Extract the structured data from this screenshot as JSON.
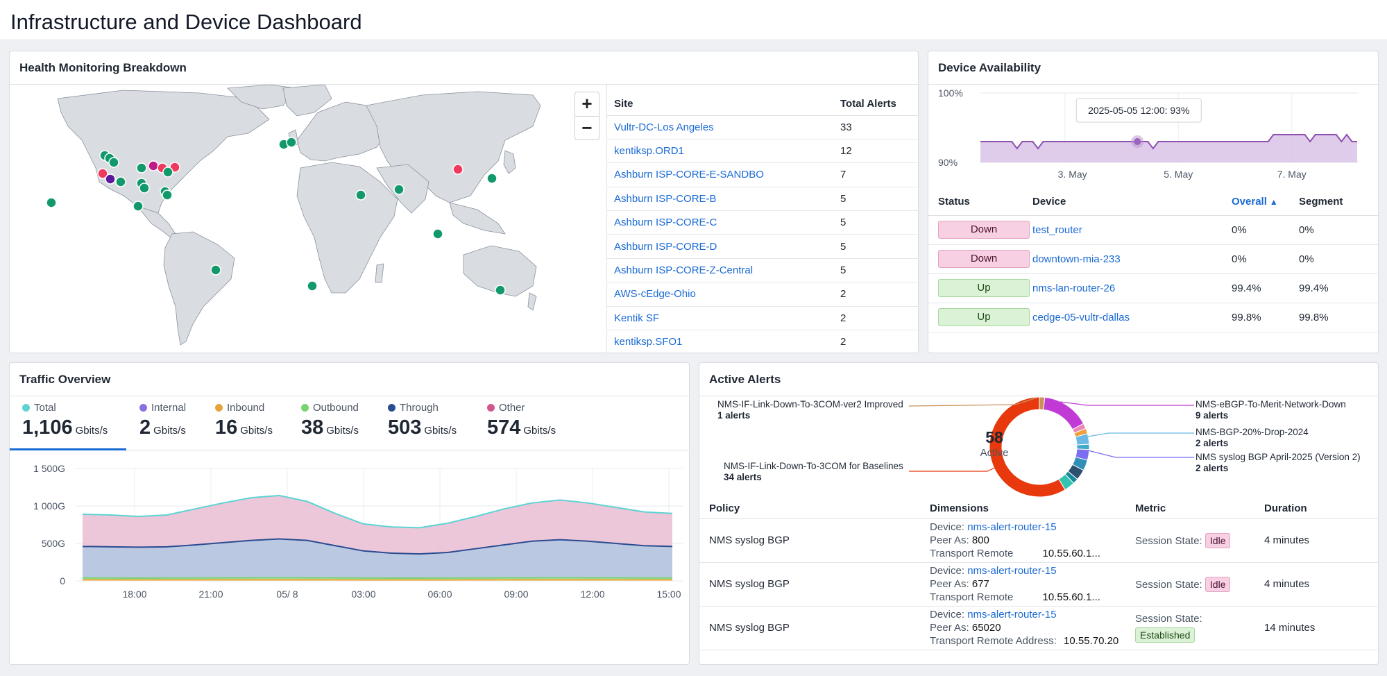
{
  "page": {
    "title": "Infrastructure and Device Dashboard"
  },
  "colors": {
    "accent": "#1a6ad4",
    "up_site": "#12996b",
    "alert_site": "#ef3a5d",
    "warn_site": "#c21a8b",
    "critical_site": "#5b1a9e"
  },
  "health": {
    "title": "Health Monitoring Breakdown",
    "zoom_in": "+",
    "zoom_out": "−",
    "table_headers": {
      "site": "Site",
      "alerts": "Total Alerts"
    },
    "rows": [
      {
        "site": "Vultr-DC-Los Angeles",
        "alerts": "33"
      },
      {
        "site": "kentiksp.ORD1",
        "alerts": "12"
      },
      {
        "site": "Ashburn ISP-CORE-E-SANDBO",
        "alerts": "7"
      },
      {
        "site": "Ashburn ISP-CORE-B",
        "alerts": "5"
      },
      {
        "site": "Ashburn ISP-CORE-C",
        "alerts": "5"
      },
      {
        "site": "Ashburn ISP-CORE-D",
        "alerts": "5"
      },
      {
        "site": "Ashburn ISP-CORE-Z-Central",
        "alerts": "5"
      },
      {
        "site": "AWS-cEdge-Ohio",
        "alerts": "2"
      },
      {
        "site": "Kentik SF",
        "alerts": "2"
      },
      {
        "site": "kentiksp.SFO1",
        "alerts": "2"
      }
    ]
  },
  "availability": {
    "title": "Device Availability",
    "tooltip": "2025-05-05 12:00: 93%",
    "y_ticks": [
      "100%",
      "90%"
    ],
    "x_ticks": [
      "3. May",
      "5. May",
      "7. May"
    ],
    "headers": {
      "status": "Status",
      "device": "Device",
      "overall": "Overall",
      "segment": "Segment"
    },
    "rows": [
      {
        "status": "Down",
        "device": "test_router",
        "overall": "0%",
        "segment": "0%"
      },
      {
        "status": "Down",
        "device": "downtown-mia-233",
        "overall": "0%",
        "segment": "0%"
      },
      {
        "status": "Up",
        "device": "nms-lan-router-26",
        "overall": "99.4%",
        "segment": "99.4%"
      },
      {
        "status": "Up",
        "device": "cedge-05-vultr-dallas",
        "overall": "99.8%",
        "segment": "99.8%"
      }
    ]
  },
  "traffic": {
    "title": "Traffic Overview",
    "stats": [
      {
        "label": "Total",
        "value": "1,106",
        "unit": "Gbits/s",
        "color": "#5ed3d3"
      },
      {
        "label": "Internal",
        "value": "2",
        "unit": "Gbits/s",
        "color": "#8a6fe0"
      },
      {
        "label": "Inbound",
        "value": "16",
        "unit": "Gbits/s",
        "color": "#e8a33c"
      },
      {
        "label": "Outbound",
        "value": "38",
        "unit": "Gbits/s",
        "color": "#79d36e"
      },
      {
        "label": "Through",
        "value": "503",
        "unit": "Gbits/s",
        "color": "#2a4c91"
      },
      {
        "label": "Other",
        "value": "574",
        "unit": "Gbits/s",
        "color": "#d0588f"
      }
    ]
  },
  "alerts": {
    "title": "Active Alerts",
    "donut_center": {
      "count": "58",
      "label": "Active"
    },
    "legend": [
      {
        "name": "NMS-IF-Link-Down-To-3COM-ver2 Improved",
        "count": "1 alerts"
      },
      {
        "name": "NMS-IF-Link-Down-To-3COM for Baselines",
        "count": "34 alerts"
      },
      {
        "name": "NMS-eBGP-To-Merit-Network-Down",
        "count": "9 alerts"
      },
      {
        "name": "NMS-BGP-20%-Drop-2024",
        "count": "2 alerts"
      },
      {
        "name": "NMS syslog BGP April-2025 (Version 2)",
        "count": "2 alerts"
      }
    ],
    "headers": {
      "policy": "Policy",
      "dimensions": "Dimensions",
      "metric": "Metric",
      "duration": "Duration"
    },
    "rows": [
      {
        "policy": "NMS syslog BGP",
        "device_label": "Device:",
        "device": "nms-alert-router-15",
        "peer_label": "Peer As:",
        "peer": "800",
        "transport_label": "Transport Remote",
        "transport": "10.55.60.1...",
        "metric_label": "Session State:",
        "state": "Idle",
        "duration": "4 minutes"
      },
      {
        "policy": "NMS syslog BGP",
        "device_label": "Device:",
        "device": "nms-alert-router-15",
        "peer_label": "Peer As:",
        "peer": "677",
        "transport_label": "Transport Remote",
        "transport": "10.55.60.1...",
        "metric_label": "Session State:",
        "state": "Idle",
        "duration": "4 minutes"
      },
      {
        "policy": "NMS syslog BGP",
        "device_label": "Device:",
        "device": "nms-alert-router-15",
        "peer_label": "Peer As:",
        "peer": "65020",
        "transport_label": "Transport Remote Address:",
        "transport": "10.55.70.20",
        "metric_label": "Session State:",
        "state": "Established",
        "duration": "14 minutes"
      }
    ]
  },
  "chart_data": [
    {
      "type": "line",
      "title": "",
      "y_ticks": [
        "100%",
        "90%"
      ],
      "x_ticks": [
        "3. May",
        "5. May",
        "7. May"
      ],
      "ylim": [
        88,
        102
      ],
      "series": [
        {
          "values": [
            93,
            93,
            93,
            93,
            93,
            93,
            93,
            92,
            93,
            93,
            93,
            92,
            93,
            93,
            93,
            93,
            93,
            93,
            93,
            93,
            93,
            93,
            93,
            93,
            93,
            93,
            93,
            93,
            93,
            93,
            93,
            93,
            93,
            92,
            93,
            93,
            93,
            93,
            93,
            93,
            93,
            93,
            93,
            93,
            93,
            93,
            93,
            93,
            93,
            93,
            93,
            93,
            93,
            93,
            93,
            93,
            94,
            94,
            94,
            94,
            94,
            94,
            94,
            93,
            94,
            94,
            94,
            94,
            94,
            93,
            94,
            93,
            93
          ]
        }
      ]
    },
    {
      "type": "area",
      "title": "",
      "y_ticks": [
        "1 500G",
        "1 000G",
        "500G",
        "0"
      ],
      "x_ticks": [
        "18:00",
        "21:00",
        "05/ 8",
        "03:00",
        "06:00",
        "09:00",
        "12:00",
        "15:00"
      ],
      "ylim": [
        0,
        1500
      ],
      "series": [
        {
          "name": "Total",
          "values": [
            890,
            880,
            860,
            880,
            960,
            1040,
            1110,
            1140,
            1060,
            900,
            760,
            720,
            710,
            770,
            860,
            960,
            1040,
            1080,
            1040,
            980,
            920,
            900
          ]
        },
        {
          "name": "Through",
          "values": [
            460,
            455,
            450,
            455,
            480,
            510,
            540,
            560,
            540,
            470,
            400,
            370,
            360,
            380,
            430,
            480,
            530,
            550,
            530,
            500,
            470,
            460
          ]
        },
        {
          "name": "Outbound",
          "values": [
            40,
            38,
            37,
            38,
            39,
            40,
            41,
            42,
            41,
            40,
            38,
            37,
            37,
            38,
            39,
            40,
            41,
            42,
            41,
            40,
            39,
            38
          ]
        },
        {
          "name": "Inbound",
          "values": [
            16,
            16,
            15,
            16,
            16,
            17,
            17,
            17,
            17,
            16,
            15,
            15,
            15,
            15,
            16,
            16,
            17,
            17,
            17,
            16,
            16,
            16
          ]
        }
      ]
    },
    {
      "type": "pie",
      "title": "",
      "series": [
        {
          "name": "NMS-IF-Link-Down-To-3COM for Baselines",
          "value": 34,
          "color": "#e8380d"
        },
        {
          "name": "NMS-IF-Link-Down-To-3COM-ver2 Improved",
          "value": 1,
          "color": "#c8915a"
        },
        {
          "name": "NMS-eBGP-To-Merit-Network-Down",
          "value": 9,
          "color": "#c13ad6"
        },
        {
          "name": "NMS-BGP-20%-Drop-2024",
          "value": 2,
          "color": "#6cb9e6"
        },
        {
          "name": "NMS syslog BGP April-2025 (Version 2)",
          "value": 2,
          "color": "#7b6ef0"
        },
        {
          "name": "",
          "value": 1,
          "color": "#e887b6"
        },
        {
          "name": "",
          "value": 1,
          "color": "#f0a03a"
        },
        {
          "name": "",
          "value": 1,
          "color": "#3fa9c9"
        },
        {
          "name": "",
          "value": 2,
          "color": "#2f8fb8"
        },
        {
          "name": "",
          "value": 2,
          "color": "#2c5070"
        },
        {
          "name": "",
          "value": 1,
          "color": "#1a8a9a"
        },
        {
          "name": "",
          "value": 2,
          "color": "#34c3b0"
        }
      ]
    }
  ]
}
